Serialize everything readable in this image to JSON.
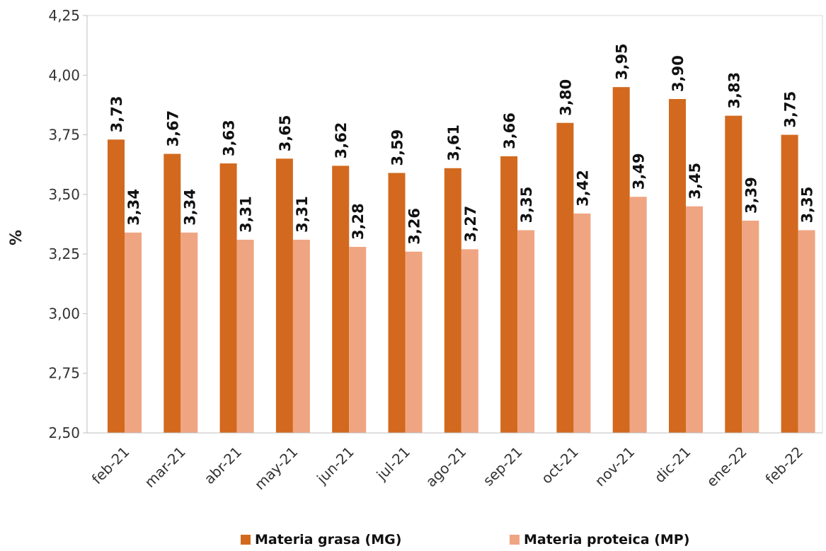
{
  "chart_data": {
    "type": "bar",
    "ylabel": "%",
    "ylim": [
      2.5,
      4.25
    ],
    "yticks": [
      "2,50",
      "2,75",
      "3,00",
      "3,25",
      "3,50",
      "3,75",
      "4,00",
      "4,25"
    ],
    "categories": [
      "feb-21",
      "mar-21",
      "abr-21",
      "may-21",
      "jun-21",
      "jul-21",
      "ago-21",
      "sep-21",
      "oct-21",
      "nov-21",
      "dic-21",
      "ene-22",
      "feb-22"
    ],
    "series": [
      {
        "name": "Materia grasa (MG)",
        "color": "#D2691E",
        "values": [
          3.73,
          3.67,
          3.63,
          3.65,
          3.62,
          3.59,
          3.61,
          3.66,
          3.8,
          3.95,
          3.9,
          3.83,
          3.75
        ],
        "labels": [
          "3,73",
          "3,67",
          "3,63",
          "3,65",
          "3,62",
          "3,59",
          "3,61",
          "3,66",
          "3,80",
          "3,95",
          "3,90",
          "3,83",
          "3,75"
        ]
      },
      {
        "name": "Materia proteica (MP)",
        "color": "#F0A582",
        "values": [
          3.34,
          3.34,
          3.31,
          3.31,
          3.28,
          3.26,
          3.27,
          3.35,
          3.42,
          3.49,
          3.45,
          3.39,
          3.35
        ],
        "labels": [
          "3,34",
          "3,34",
          "3,31",
          "3,31",
          "3,28",
          "3,26",
          "3,27",
          "3,35",
          "3,42",
          "3,49",
          "3,45",
          "3,39",
          "3,35"
        ]
      }
    ],
    "grid": false,
    "legend_position": "bottom"
  }
}
